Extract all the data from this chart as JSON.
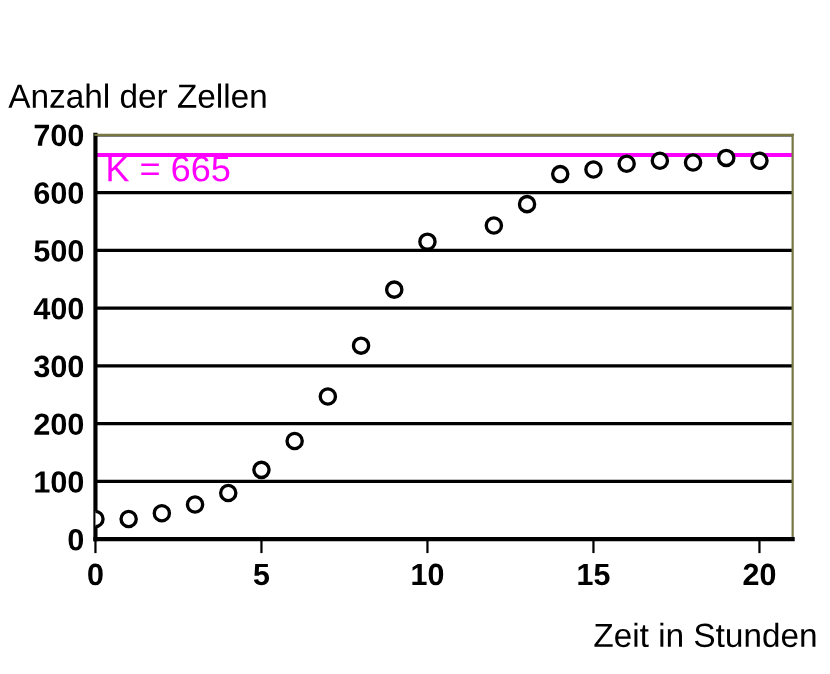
{
  "chart_data": {
    "type": "scatter",
    "xlabel": "Zeit in Stunden",
    "ylabel": "Anzahl der Zellen",
    "x": [
      0,
      1,
      2,
      3,
      4,
      5,
      6,
      7,
      8,
      9,
      10,
      12,
      13,
      14,
      15,
      16,
      17,
      18,
      19,
      20
    ],
    "series": [
      {
        "color": "#000000",
        "values": [
          35,
          35,
          45,
          60,
          80,
          120,
          170,
          247,
          335,
          432,
          515,
          543,
          580,
          632,
          640,
          650,
          655,
          652,
          660,
          655
        ]
      }
    ],
    "marker": "circle",
    "xlim": [
      0,
      21
    ],
    "ylim": [
      0,
      700
    ],
    "xticks": [
      0,
      5,
      10,
      15,
      20
    ],
    "yticks": [
      0,
      100,
      200,
      300,
      400,
      500,
      600,
      700
    ],
    "grid": "y",
    "legend": false,
    "ref_lines": [
      {
        "axis": "y",
        "value": 665,
        "label": "K = 665",
        "color": "#ff00ff"
      }
    ]
  }
}
